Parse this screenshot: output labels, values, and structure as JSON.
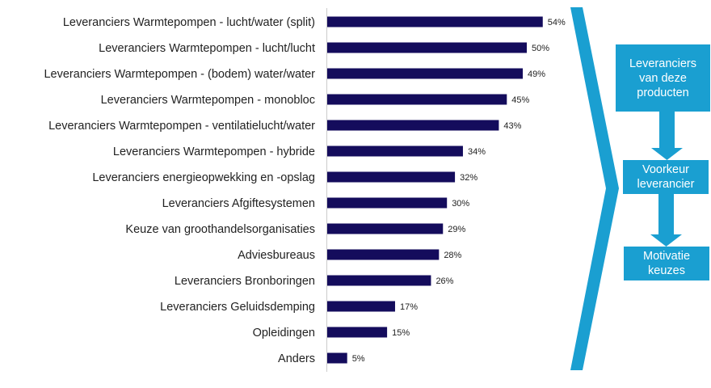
{
  "chart_data": {
    "type": "bar",
    "orientation": "horizontal",
    "categories": [
      "Leveranciers Warmtepompen - lucht/water (split)",
      "Leveranciers Warmtepompen - lucht/lucht",
      "Leveranciers Warmtepompen - (bodem) water/water",
      "Leveranciers Warmtepompen - monobloc",
      "Leveranciers Warmtepompen - ventilatielucht/water",
      "Leveranciers Warmtepompen - hybride",
      "Leveranciers energieopwekking en -opslag",
      "Leveranciers Afgiftesystemen",
      "Keuze van groothandelsorganisaties",
      "Adviesbureaus",
      "Leveranciers Bronboringen",
      "Leveranciers Geluidsdemping",
      "Opleidingen",
      "Anders"
    ],
    "values": [
      54,
      50,
      49,
      45,
      43,
      34,
      32,
      30,
      29,
      28,
      26,
      17,
      15,
      5
    ],
    "value_labels": [
      "54%",
      "50%",
      "49%",
      "45%",
      "43%",
      "34%",
      "32%",
      "30%",
      "29%",
      "28%",
      "26%",
      "17%",
      "15%",
      "5%"
    ],
    "unit": "%",
    "bar_color": "#140c5c",
    "grid": false
  },
  "flow": {
    "color": "#1a9fd1",
    "steps": [
      "Leveranciers van deze producten",
      "Voorkeur leverancier",
      "Motivatie keuzes"
    ]
  }
}
